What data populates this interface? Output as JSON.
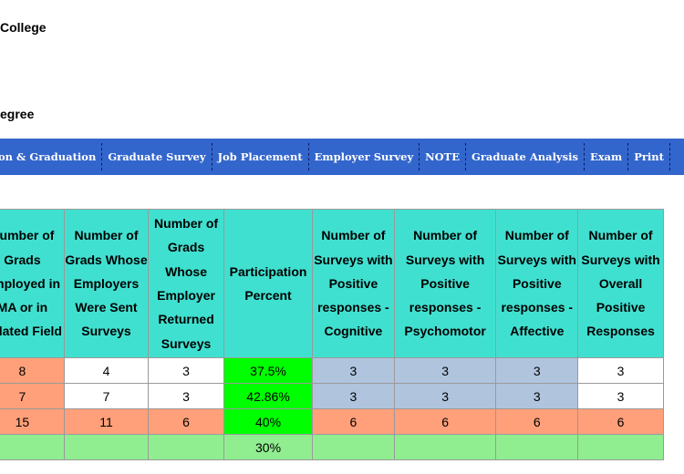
{
  "header": {
    "line1": "College",
    "line2": "egree"
  },
  "nav": {
    "items": [
      "on & Graduation",
      "Graduate Survey",
      "Job Placement",
      "Employer Survey",
      "NOTE",
      "Graduate Analysis",
      "Exam",
      "Print"
    ]
  },
  "table": {
    "headers": [
      "Number of Grads Employed in MA or in Related Field",
      "Number of Grads Whose Employers Were Sent Surveys",
      "Number of Grads Whose Employer Returned Surveys",
      "Participation Percent",
      "Number of Surveys with Positive responses - Cognitive",
      "Number of Surveys with Positive responses - Psychomotor",
      "Number of Surveys with Positive responses - Affective",
      "Number of Surveys with Overall Positive Responses"
    ],
    "rows": [
      [
        "8",
        "4",
        "3",
        "37.5%",
        "3",
        "3",
        "3",
        "3"
      ],
      [
        "7",
        "7",
        "3",
        "42.86%",
        "3",
        "3",
        "3",
        "3"
      ],
      [
        "15",
        "11",
        "6",
        "40%",
        "6",
        "6",
        "6",
        "6"
      ],
      [
        "",
        "",
        "",
        "30%",
        "",
        "",
        "",
        ""
      ]
    ],
    "row_colors": [
      [
        "#ffa07a",
        "#ffffff",
        "#ffffff",
        "#00ff00",
        "#b0c4de",
        "#b0c4de",
        "#b0c4de",
        "#ffffff"
      ],
      [
        "#ffa07a",
        "#ffffff",
        "#ffffff",
        "#00ff00",
        "#b0c4de",
        "#b0c4de",
        "#b0c4de",
        "#ffffff"
      ],
      [
        "#ffa07a",
        "#ffa07a",
        "#ffa07a",
        "#00ff00",
        "#ffa07a",
        "#ffa07a",
        "#ffa07a",
        "#ffa07a"
      ],
      [
        "#90ee90",
        "#90ee90",
        "#90ee90",
        "#90ee90",
        "#90ee90",
        "#90ee90",
        "#90ee90",
        "#90ee90"
      ]
    ]
  },
  "colors": {
    "nav_bg": "#3366cc",
    "header_bg": "#40e0d0"
  }
}
